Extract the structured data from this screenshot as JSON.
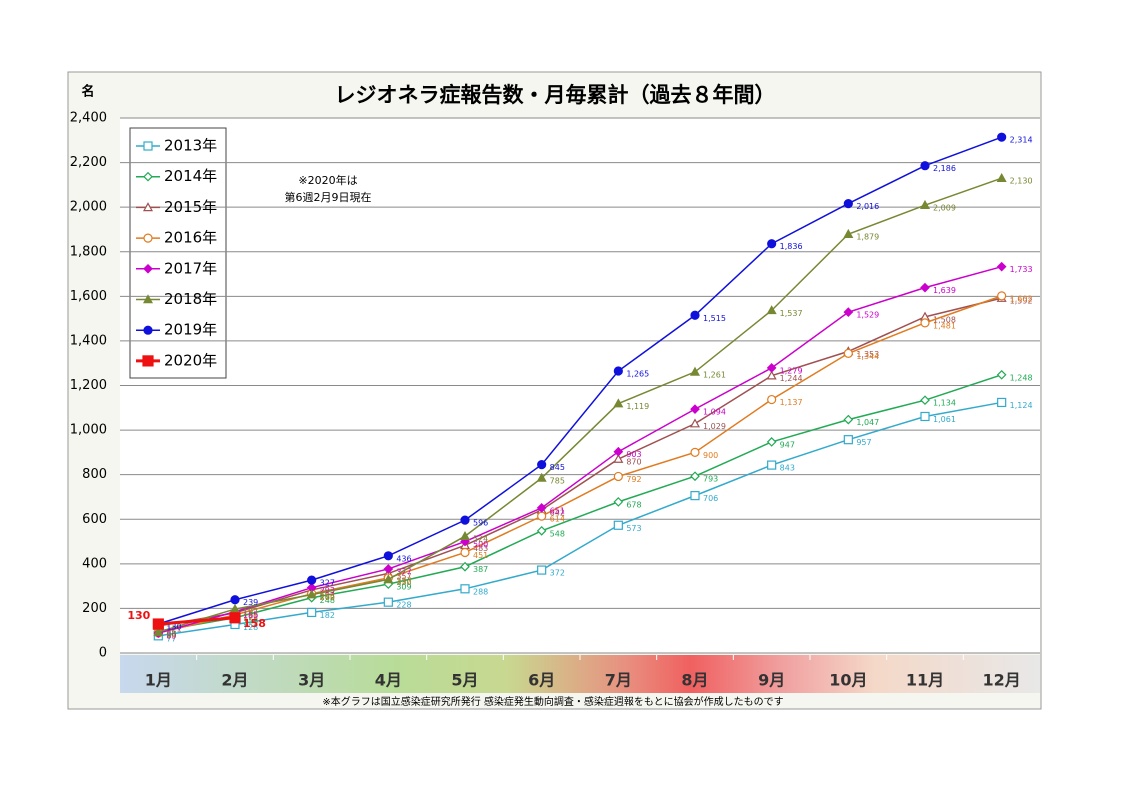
{
  "chart_data": {
    "type": "line",
    "title": "レジオネラ症報告数・月毎累計（過去８年間）",
    "ylabel": "名",
    "annotation": [
      "※2020年は",
      "第6週2月9日現在"
    ],
    "footnote": "※本グラフは国立感染症研究所発行 感染症発生動向調査・感染症週報をもとに協会が作成したものです",
    "categories": [
      "1月",
      "2月",
      "3月",
      "4月",
      "5月",
      "6月",
      "7月",
      "8月",
      "9月",
      "10月",
      "11月",
      "12月"
    ],
    "ylim": [
      0,
      2400
    ],
    "yticks": [
      0,
      200,
      400,
      600,
      800,
      {
        "value": 1000,
        "label": "1,000"
      },
      {
        "value": 1200,
        "label": "1,200"
      },
      {
        "value": 1400,
        "label": "1,400"
      },
      {
        "value": 1600,
        "label": "1,600"
      },
      {
        "value": 1800,
        "label": "1,800"
      },
      {
        "value": 2000,
        "label": "2,000"
      },
      {
        "value": 2200,
        "label": "2,200"
      },
      {
        "value": 2400,
        "label": "2,400"
      }
    ],
    "grid": true,
    "legend": "upper left",
    "series": [
      {
        "name": "2013年",
        "color": "#33aacc",
        "marker": "square",
        "filled": false,
        "values": [
          77,
          128,
          182,
          228,
          288,
          372,
          573,
          706,
          843,
          957,
          1061,
          1124
        ],
        "value_labels": [
          "77",
          "128",
          "182",
          "228",
          "288",
          "372",
          "573",
          "706",
          "843",
          "957",
          "1,061",
          "1,124"
        ]
      },
      {
        "name": "2014年",
        "color": "#22aa55",
        "marker": "diamond",
        "filled": false,
        "values": [
          98,
          158,
          248,
          309,
          387,
          548,
          678,
          793,
          947,
          1047,
          1134,
          1248
        ],
        "value_labels": [
          "98",
          "158",
          "248",
          "309",
          "387",
          "548",
          "678",
          "793",
          "947",
          "1,047",
          "1,134",
          "1,248"
        ]
      },
      {
        "name": "2015年",
        "color": "#a05050",
        "marker": "triangle",
        "filled": false,
        "values": [
          121,
          180,
          283,
          357,
          483,
          642,
          870,
          1029,
          1244,
          1353,
          1508,
          1592
        ],
        "value_labels": [
          "121",
          "180",
          "283",
          "357",
          "483",
          "642",
          "870",
          "1,029",
          "1,244",
          "1,353",
          "1,508",
          "1,592"
        ]
      },
      {
        "name": "2016年",
        "color": "#e07b20",
        "marker": "circle",
        "filled": false,
        "values": [
          90,
          171,
          266,
          337,
          451,
          614,
          792,
          900,
          1137,
          1344,
          1481,
          1602
        ],
        "value_labels": [
          "90",
          "171",
          "266",
          "337",
          "451",
          "614",
          "792",
          "900",
          "1,137",
          "1,344",
          "1,481",
          "1,602"
        ]
      },
      {
        "name": "2017年",
        "color": "#cc00cc",
        "marker": "diamond",
        "filled": true,
        "values": [
          89,
          185,
          293,
          377,
          500,
          651,
          903,
          1094,
          1279,
          1529,
          1639,
          1733
        ],
        "value_labels": [
          "89",
          "185",
          "293",
          "377",
          "500",
          "651",
          "903",
          "1,094",
          "1,279",
          "1,529",
          "1,639",
          "1,733"
        ]
      },
      {
        "name": "2018年",
        "color": "#778833",
        "marker": "triangle",
        "filled": true,
        "values": [
          94,
          197,
          262,
          330,
          524,
          785,
          1119,
          1261,
          1537,
          1879,
          2009,
          2130
        ],
        "value_labels": [
          "94",
          "197",
          "262",
          "330",
          "524",
          "785",
          "1,119",
          "1,261",
          "1,537",
          "1,879",
          "2,009",
          "2,130"
        ]
      },
      {
        "name": "2019年",
        "color": "#1010dd",
        "marker": "circle",
        "filled": true,
        "values": [
          130,
          239,
          327,
          436,
          596,
          845,
          1265,
          1515,
          1836,
          2016,
          2186,
          2314
        ],
        "value_labels": [
          "130",
          "239",
          "327",
          "436",
          "596",
          "845",
          "1,265",
          "1,515",
          "1,836",
          "2,016",
          "2,186",
          "2,314"
        ]
      },
      {
        "name": "2020年",
        "color": "#ee1111",
        "marker": "square",
        "filled": true,
        "values": [
          130,
          158,
          null,
          null,
          null,
          null,
          null,
          null,
          null,
          null,
          null,
          null
        ]
      }
    ]
  }
}
